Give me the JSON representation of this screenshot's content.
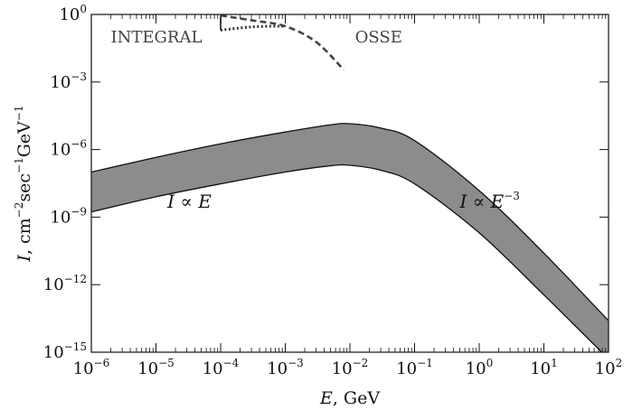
{
  "chart_data": {
    "type": "area",
    "xscale": "log",
    "yscale": "log",
    "xlim": [
      1e-06,
      100
    ],
    "ylim": [
      1e-15,
      1
    ],
    "xlabel": {
      "italic": "E",
      "rest": ", GeV"
    },
    "ylabel": {
      "italic": "I",
      "rest": ", cm",
      "e1": "−2",
      "mid": "sec",
      "e2": "−1",
      "tail": "GeV",
      "e3": "−1"
    },
    "x_ticks": [
      {
        "base": "10",
        "exp": "−6",
        "value": 1e-06
      },
      {
        "base": "10",
        "exp": "−5",
        "value": 1e-05
      },
      {
        "base": "10",
        "exp": "−4",
        "value": 0.0001
      },
      {
        "base": "10",
        "exp": "−3",
        "value": 0.001
      },
      {
        "base": "10",
        "exp": "−2",
        "value": 0.01
      },
      {
        "base": "10",
        "exp": "−1",
        "value": 0.1
      },
      {
        "base": "10",
        "exp": "0",
        "value": 1
      },
      {
        "base": "10",
        "exp": "1",
        "value": 10
      },
      {
        "base": "10",
        "exp": "2",
        "value": 100
      }
    ],
    "y_ticks": [
      {
        "base": "10",
        "exp": "0",
        "value": 1
      },
      {
        "base": "10",
        "exp": "−3",
        "value": 0.001
      },
      {
        "base": "10",
        "exp": "−6",
        "value": 1e-06
      },
      {
        "base": "10",
        "exp": "−9",
        "value": 1e-09
      },
      {
        "base": "10",
        "exp": "−12",
        "value": 1e-12
      },
      {
        "base": "10",
        "exp": "−15",
        "value": 1e-15
      }
    ],
    "band": {
      "color": "#8c8c8c",
      "upper": [
        [
          1e-06,
          1e-07
        ],
        [
          1e-05,
          4.5e-07
        ],
        [
          0.0001,
          1.8e-06
        ],
        [
          0.001,
          6e-06
        ],
        [
          0.005,
          1.25e-05
        ],
        [
          0.01,
          1.4e-05
        ],
        [
          0.03,
          9e-06
        ],
        [
          0.1,
          2.5e-06
        ],
        [
          1,
          1.5e-08
        ],
        [
          10,
          2.5e-11
        ],
        [
          100,
          2.5e-14
        ]
      ],
      "lower": [
        [
          1e-06,
          1.7e-09
        ],
        [
          1e-05,
          8e-09
        ],
        [
          0.0001,
          3e-08
        ],
        [
          0.001,
          1e-07
        ],
        [
          0.005,
          1.9e-07
        ],
        [
          0.01,
          2e-07
        ],
        [
          0.03,
          1.2e-07
        ],
        [
          0.1,
          3e-08
        ],
        [
          1,
          2e-10
        ],
        [
          10,
          3.5e-13
        ],
        [
          100,
          5e-16
        ]
      ]
    },
    "series": [
      {
        "style": "dotted",
        "color": "#333333",
        "points": [
          [
            0.0001,
            0.2
          ],
          [
            0.00015,
            0.23
          ],
          [
            0.0003,
            0.28
          ],
          [
            0.0006,
            0.3
          ],
          [
            0.001,
            0.3
          ]
        ]
      },
      {
        "style": "dashed",
        "color": "#444444",
        "points": [
          [
            0.0001,
            0.9
          ],
          [
            0.0003,
            0.55
          ],
          [
            0.001,
            0.3
          ],
          [
            0.003,
            0.06
          ],
          [
            0.008,
            0.0035
          ]
        ]
      },
      {
        "style": "solid",
        "color": "#333333",
        "points": [
          [
            0.0001,
            0.8
          ],
          [
            0.0001,
            0.2
          ]
        ]
      }
    ],
    "annotations": [
      {
        "text": "INTEGRAL",
        "x": 2e-06,
        "y": 0.1,
        "style": "gray"
      },
      {
        "text": "OSSE",
        "x": 0.012,
        "y": 0.1,
        "style": "gray"
      },
      {
        "italic": "I",
        "op": " ∝ ",
        "var": "E",
        "exp": "",
        "x": 1.5e-05,
        "y": 5e-09,
        "style": "math"
      },
      {
        "italic": "I",
        "op": " ∝ ",
        "var": "E",
        "exp": "−3",
        "x": 0.5,
        "y": 5e-09,
        "style": "math"
      }
    ]
  }
}
